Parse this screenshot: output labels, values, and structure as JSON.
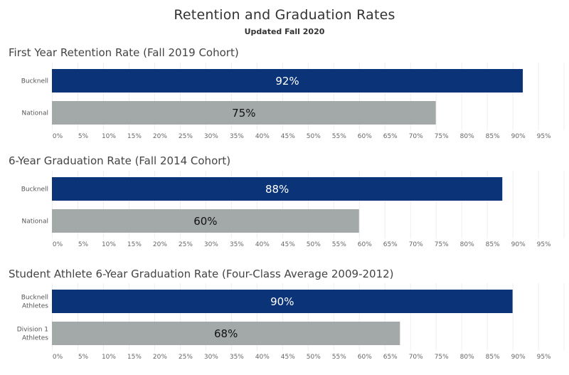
{
  "header": {
    "title": "Retention and Graduation Rates",
    "subtitle": "Updated Fall 2020"
  },
  "colors": {
    "primary_bar": "#0b3478",
    "secondary_bar": "#a3a8a9",
    "primary_label": "#ffffff",
    "secondary_label": "#111111"
  },
  "chart_data": [
    {
      "type": "bar",
      "orientation": "horizontal",
      "title": "First Year Retention Rate (Fall 2019 Cohort)",
      "categories": [
        [
          "Bucknell"
        ],
        [
          "National"
        ]
      ],
      "values": [
        92,
        75
      ],
      "value_labels": [
        "92%",
        "75%"
      ],
      "xlim": [
        0,
        100
      ],
      "ticks": [
        "0%",
        "5%",
        "10%",
        "15%",
        "20%",
        "25%",
        "30%",
        "35%",
        "40%",
        "45%",
        "50%",
        "55%",
        "60%",
        "65%",
        "70%",
        "75%",
        "80%",
        "85%",
        "90%",
        "95%"
      ],
      "grid": true
    },
    {
      "type": "bar",
      "orientation": "horizontal",
      "title": "6-Year Graduation Rate (Fall 2014 Cohort)",
      "categories": [
        [
          "Bucknell"
        ],
        [
          "National"
        ]
      ],
      "values": [
        88,
        60
      ],
      "value_labels": [
        "88%",
        "60%"
      ],
      "xlim": [
        0,
        100
      ],
      "ticks": [
        "0%",
        "5%",
        "10%",
        "15%",
        "20%",
        "25%",
        "30%",
        "35%",
        "40%",
        "45%",
        "50%",
        "55%",
        "60%",
        "65%",
        "70%",
        "75%",
        "80%",
        "85%",
        "90%",
        "95%"
      ],
      "grid": true
    },
    {
      "type": "bar",
      "orientation": "horizontal",
      "title": "Student Athlete 6-Year Graduation Rate (Four-Class Average 2009-2012)",
      "categories": [
        [
          "Bucknell",
          "Athletes"
        ],
        [
          "Division 1",
          "Athletes"
        ]
      ],
      "values": [
        90,
        68
      ],
      "value_labels": [
        "90%",
        "68%"
      ],
      "xlim": [
        0,
        100
      ],
      "ticks": [
        "0%",
        "5%",
        "10%",
        "15%",
        "20%",
        "25%",
        "30%",
        "35%",
        "40%",
        "45%",
        "50%",
        "55%",
        "60%",
        "65%",
        "70%",
        "75%",
        "80%",
        "85%",
        "90%",
        "95%"
      ],
      "grid": true
    }
  ]
}
